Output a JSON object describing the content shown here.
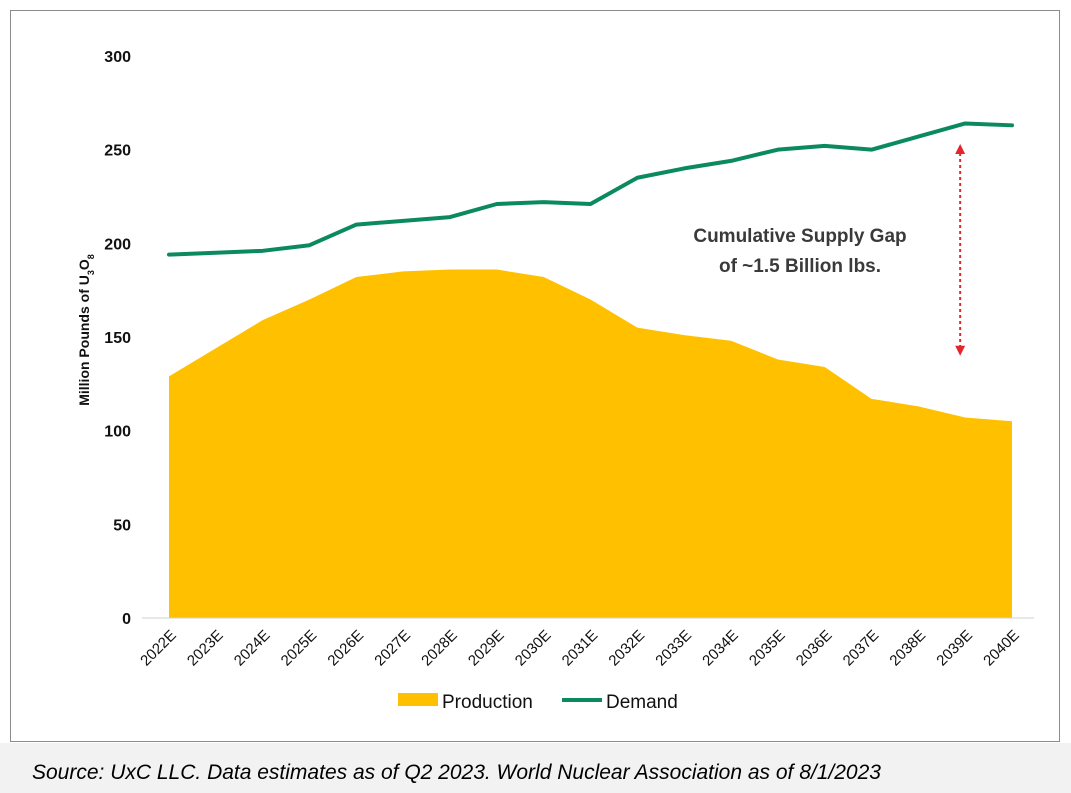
{
  "chart_data": {
    "type": "area",
    "title": "",
    "ylabel_main": "Million Pounds of U",
    "ylabel_sub1": "3",
    "ylabel_mid": "O",
    "ylabel_sub2": "8",
    "xlabel": "",
    "ylim": [
      0,
      300
    ],
    "yticks": [
      0,
      50,
      100,
      150,
      200,
      250,
      300
    ],
    "categories": [
      "2022E",
      "2023E",
      "2024E",
      "2025E",
      "2026E",
      "2027E",
      "2028E",
      "2029E",
      "2030E",
      "2031E",
      "2032E",
      "2033E",
      "2034E",
      "2035E",
      "2036E",
      "2037E",
      "2038E",
      "2039E",
      "2040E"
    ],
    "series": [
      {
        "name": "Production",
        "kind": "area",
        "color": "#FFC000",
        "values": [
          129,
          144,
          159,
          170,
          182,
          185,
          186,
          186,
          182,
          170,
          155,
          151,
          148,
          138,
          134,
          117,
          113,
          107,
          105
        ]
      },
      {
        "name": "Demand",
        "kind": "line",
        "color": "#0B8A5E",
        "values": [
          194,
          195,
          196,
          199,
          210,
          212,
          214,
          221,
          222,
          221,
          235,
          240,
          244,
          250,
          252,
          250,
          257,
          264,
          263
        ]
      }
    ],
    "annotation": {
      "line1": "Cumulative Supply Gap",
      "line2": "of ~1.5 Billion lbs.",
      "arrow_color": "#E3262B",
      "arrow_category": "2039E",
      "arrow_from": 140,
      "arrow_to": 253
    },
    "legend": {
      "placement": "bottom-center",
      "items": [
        {
          "label": "Production",
          "color": "#FFC000",
          "shape": "box"
        },
        {
          "label": "Demand",
          "color": "#0B8A5E",
          "shape": "line"
        }
      ]
    }
  },
  "source": "Source: UxC LLC. Data estimates as of Q2 2023. World Nuclear Association as of 8/1/2023"
}
